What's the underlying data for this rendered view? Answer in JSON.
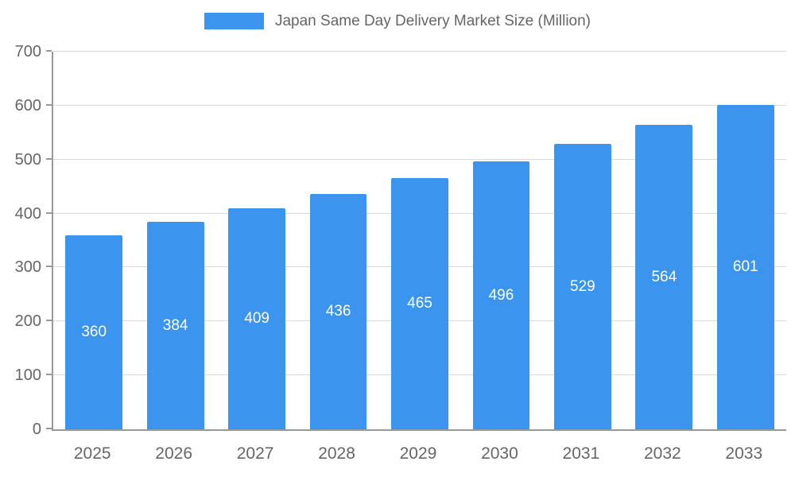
{
  "chart_data": {
    "type": "bar",
    "title": "Japan Same Day Delivery Market Size (Million)",
    "categories": [
      "2025",
      "2026",
      "2027",
      "2028",
      "2029",
      "2030",
      "2031",
      "2032",
      "2033"
    ],
    "values": [
      360,
      384,
      409,
      436,
      465,
      496,
      529,
      564,
      601
    ],
    "value_labels": [
      "360",
      "384",
      "409",
      "436",
      "465",
      "496",
      "529",
      "564",
      "601"
    ],
    "xlabel": "",
    "ylabel": "",
    "ylim": [
      0,
      700
    ],
    "yticks": [
      0,
      100,
      200,
      300,
      400,
      500,
      600,
      700
    ],
    "grid": true,
    "legend_position": "top",
    "colors": {
      "bar": "#3b95ee",
      "axis": "#999999",
      "gridline": "#d9d9d9",
      "tick_text": "#666666",
      "value_text": "#ffffff",
      "title_text": "#666666"
    }
  }
}
